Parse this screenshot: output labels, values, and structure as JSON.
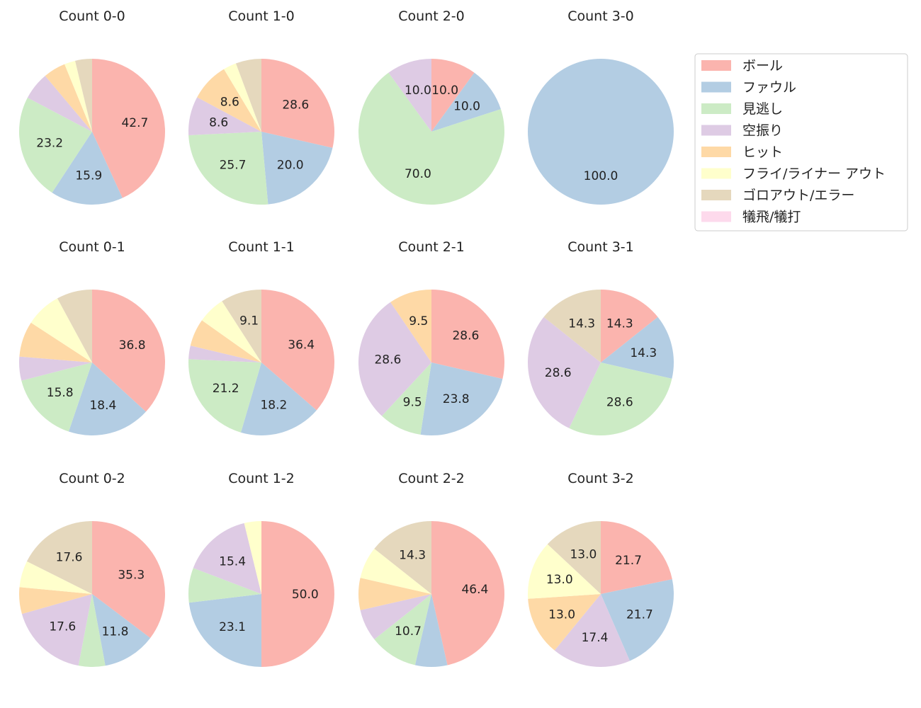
{
  "categories": [
    "ボール",
    "ファウル",
    "見逃し",
    "空振り",
    "ヒット",
    "フライ/ライナー アウト",
    "ゴロアウト/エラー",
    "犠飛/犠打"
  ],
  "colors": [
    "#fbb4ae",
    "#b3cde3",
    "#ccebc5",
    "#decbe4",
    "#fed9a6",
    "#ffffcc",
    "#e5d8bd",
    "#fddaec"
  ],
  "chart_data": [
    {
      "type": "pie",
      "title": "Count 0-0",
      "values": [
        42.7,
        15.9,
        23.2,
        6.1,
        4.9,
        2.4,
        3.7,
        0
      ],
      "labels": [
        "42.7",
        "15.9",
        "23.2",
        "",
        "",
        "",
        "",
        ""
      ]
    },
    {
      "type": "pie",
      "title": "Count 1-0",
      "values": [
        28.6,
        20.0,
        25.7,
        8.6,
        8.6,
        2.9,
        5.7,
        0
      ],
      "labels": [
        "28.6",
        "20.0",
        "25.7",
        "8.6",
        "8.6",
        "",
        "",
        ""
      ]
    },
    {
      "type": "pie",
      "title": "Count 2-0",
      "values": [
        10.0,
        10.0,
        70.0,
        10.0,
        0,
        0,
        0,
        0
      ],
      "labels": [
        "10.0",
        "10.0",
        "70.0",
        "10.0",
        "",
        "",
        "",
        ""
      ]
    },
    {
      "type": "pie",
      "title": "Count 3-0",
      "values": [
        0,
        100.0,
        0,
        0,
        0,
        0,
        0,
        0
      ],
      "labels": [
        "",
        "100.0",
        "",
        "",
        "",
        "",
        "",
        ""
      ]
    },
    {
      "type": "pie",
      "title": "Count 0-1",
      "values": [
        36.8,
        18.4,
        15.8,
        5.3,
        7.9,
        7.9,
        7.9,
        0
      ],
      "labels": [
        "36.8",
        "18.4",
        "15.8",
        "",
        "",
        "",
        "",
        ""
      ]
    },
    {
      "type": "pie",
      "title": "Count 1-1",
      "values": [
        36.4,
        18.2,
        21.2,
        3.0,
        6.1,
        6.1,
        9.1,
        0
      ],
      "labels": [
        "36.4",
        "18.2",
        "21.2",
        "",
        "",
        "",
        "9.1",
        ""
      ]
    },
    {
      "type": "pie",
      "title": "Count 2-1",
      "values": [
        28.6,
        23.8,
        9.5,
        28.6,
        9.5,
        0,
        0,
        0
      ],
      "labels": [
        "28.6",
        "23.8",
        "9.5",
        "28.6",
        "9.5",
        "",
        "",
        ""
      ]
    },
    {
      "type": "pie",
      "title": "Count 3-1",
      "values": [
        14.3,
        14.3,
        28.6,
        28.6,
        0,
        0,
        14.3,
        0
      ],
      "labels": [
        "14.3",
        "14.3",
        "28.6",
        "28.6",
        "",
        "",
        "14.3",
        ""
      ]
    },
    {
      "type": "pie",
      "title": "Count 0-2",
      "values": [
        35.3,
        11.8,
        5.9,
        17.6,
        5.9,
        5.9,
        17.6,
        0
      ],
      "labels": [
        "35.3",
        "11.8",
        "",
        "17.6",
        "",
        "",
        "17.6",
        ""
      ]
    },
    {
      "type": "pie",
      "title": "Count 1-2",
      "values": [
        50.0,
        23.1,
        7.7,
        15.4,
        0,
        3.8,
        0,
        0
      ],
      "labels": [
        "50.0",
        "23.1",
        "",
        "15.4",
        "",
        "",
        "",
        ""
      ]
    },
    {
      "type": "pie",
      "title": "Count 2-2",
      "values": [
        46.4,
        7.1,
        10.7,
        7.1,
        7.1,
        7.1,
        14.3,
        0
      ],
      "labels": [
        "46.4",
        "",
        "10.7",
        "",
        "",
        "",
        "14.3",
        ""
      ]
    },
    {
      "type": "pie",
      "title": "Count 3-2",
      "values": [
        21.7,
        21.7,
        0,
        17.4,
        13.0,
        13.0,
        13.0,
        0
      ],
      "labels": [
        "21.7",
        "21.7",
        "",
        "17.4",
        "13.0",
        "13.0",
        "13.0",
        ""
      ]
    }
  ]
}
